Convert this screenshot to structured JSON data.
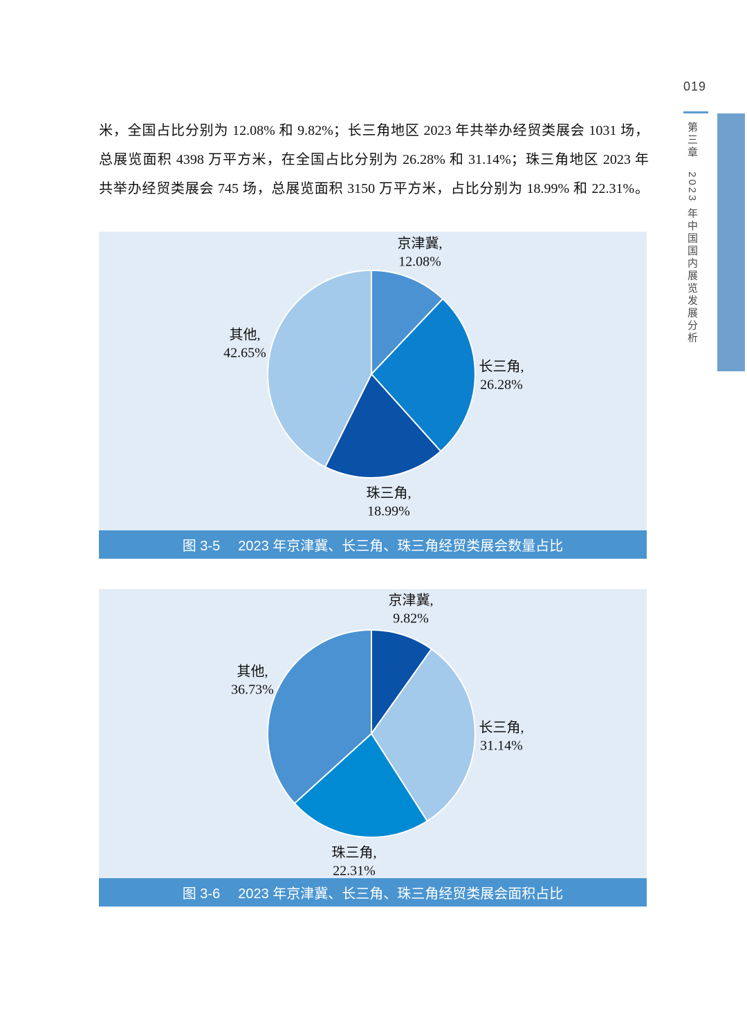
{
  "page": {
    "number": "019"
  },
  "sidebar": {
    "chapter": "第三章　2023 年中国国内展览发展分析",
    "accent_bar_color": "#70A1CE",
    "rule_color": "#5B9BD5"
  },
  "paragraph": {
    "lines": [
      "米，全国占比分别为 12.08% 和 9.82%；长三角地区 2023 年共举办经贸类展会 1031 场，",
      "总展览面积 4398 万平方米，在全国占比分别为 26.28% 和 31.14%；珠三角地区 2023 年",
      "共举办经贸类展会 745 场，总展览面积 3150 万平方米，占比分别为 18.99% 和 22.31%。"
    ]
  },
  "chart_data": [
    {
      "type": "pie",
      "figure_label": "图 3-5",
      "caption": "2023 年京津冀、长三角、珠三角经贸类展会数量占比",
      "categories": [
        "京津冀",
        "长三角",
        "珠三角",
        "其他"
      ],
      "values": [
        12.08,
        26.28,
        18.99,
        42.65
      ],
      "unit": "%",
      "start_angle": "top",
      "direction": "clockwise",
      "colors": [
        "#4A92D2",
        "#0A80CE",
        "#0A51A8",
        "#A3C9EB"
      ],
      "panel_bg": "#E2ECF7",
      "caption_bar_color": "#4A94D0",
      "slice_border_color": "#ffffff"
    },
    {
      "type": "pie",
      "figure_label": "图 3-6",
      "caption": "2023 年京津冀、长三角、珠三角经贸类展会面积占比",
      "categories": [
        "京津冀",
        "长三角",
        "珠三角",
        "其他"
      ],
      "values": [
        9.82,
        31.14,
        22.31,
        36.73
      ],
      "unit": "%",
      "start_angle": "top",
      "direction": "clockwise",
      "colors": [
        "#0A51A8",
        "#A3C9EB",
        "#008AD3",
        "#4A92D2"
      ],
      "panel_bg": "#E2ECF7",
      "caption_bar_color": "#4A94D0",
      "slice_border_color": "#ffffff"
    }
  ]
}
